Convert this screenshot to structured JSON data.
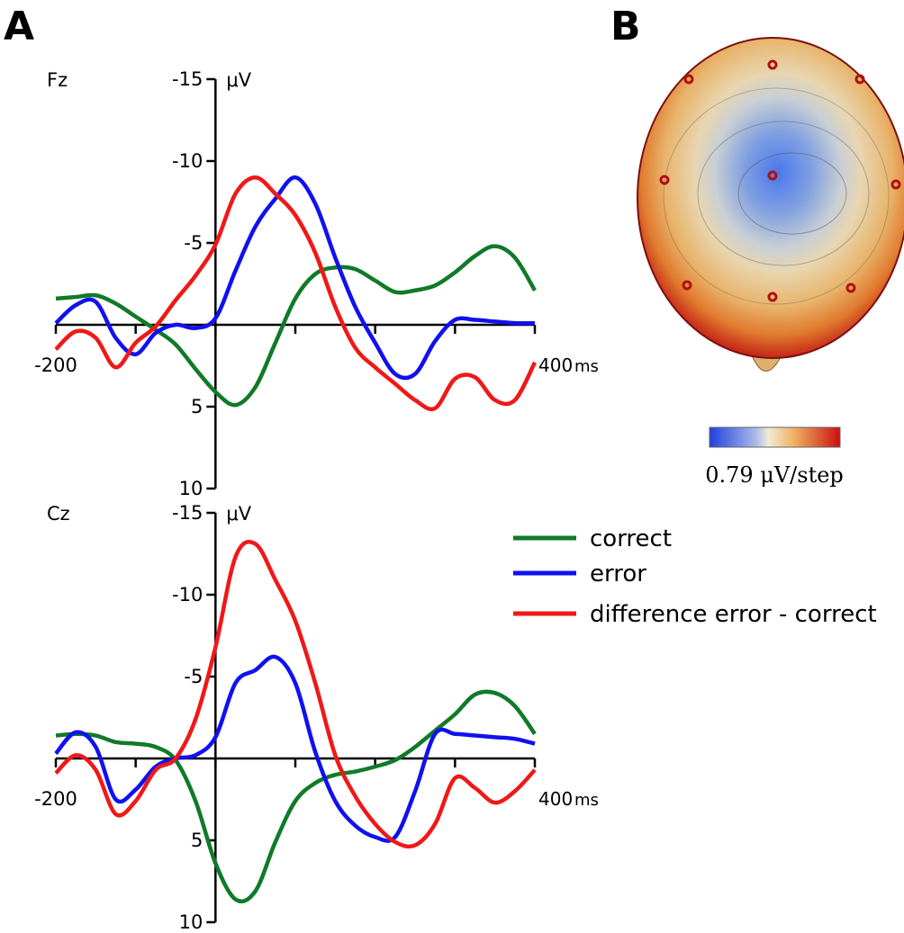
{
  "panels": [
    "A",
    "B"
  ],
  "topomap": {
    "scale_label": "0.79 μV/step"
  },
  "chart_data": [
    {
      "type": "line",
      "title": "Fz",
      "y_unit": "μV",
      "x_unit": "ms",
      "y_inverted": true,
      "x": [
        -200,
        -175,
        -150,
        -125,
        -100,
        -75,
        -50,
        -25,
        0,
        25,
        50,
        75,
        100,
        125,
        150,
        175,
        200,
        225,
        250,
        275,
        300,
        325,
        350,
        375,
        400
      ],
      "xlim": [
        -200,
        400
      ],
      "xticks": [
        -200,
        400
      ],
      "xminor_ticks": [
        -100,
        0,
        100,
        200,
        300
      ],
      "ylim": [
        -15,
        10
      ],
      "yticks": [
        -15,
        -10,
        -5,
        5,
        10
      ],
      "series": [
        {
          "name": "correct",
          "color": "#107a28",
          "values": [
            -1.6,
            -1.7,
            -1.8,
            -1.3,
            -0.5,
            0.3,
            1.2,
            2.7,
            4.1,
            4.9,
            3.8,
            1.1,
            -1.6,
            -3.1,
            -3.5,
            -3.4,
            -2.7,
            -2.0,
            -2.1,
            -2.4,
            -3.2,
            -4.2,
            -4.8,
            -4.1,
            -2.1
          ]
        },
        {
          "name": "error",
          "color": "#1010f0",
          "values": [
            -0.1,
            -1.2,
            -1.4,
            0.8,
            1.8,
            0.5,
            0,
            0.2,
            -0.4,
            -3.3,
            -6.0,
            -7.7,
            -9.0,
            -7.4,
            -4.1,
            -1.1,
            1.1,
            3.0,
            3.0,
            1.0,
            -0.3,
            -0.3,
            -0.2,
            -0.1,
            -0.1
          ]
        },
        {
          "name": "difference error - correct",
          "color": "#f01818",
          "values": [
            1.5,
            0.4,
            0.8,
            2.6,
            1.1,
            0.1,
            -1.5,
            -3.0,
            -4.9,
            -8.0,
            -9.0,
            -8.0,
            -6.7,
            -4.4,
            -1.1,
            1.4,
            2.6,
            3.6,
            4.6,
            5.1,
            3.3,
            3.2,
            4.6,
            4.6,
            2.3
          ]
        }
      ]
    },
    {
      "type": "line",
      "title": "Cz",
      "y_unit": "μV",
      "x_unit": "ms",
      "y_inverted": true,
      "x": [
        -200,
        -175,
        -150,
        -125,
        -100,
        -75,
        -50,
        -25,
        0,
        25,
        50,
        75,
        100,
        125,
        150,
        175,
        200,
        225,
        250,
        275,
        300,
        325,
        350,
        375,
        400
      ],
      "xlim": [
        -200,
        400
      ],
      "xticks": [
        -200,
        400
      ],
      "xminor_ticks": [
        -100,
        0,
        100,
        200,
        300
      ],
      "ylim": [
        -15,
        10
      ],
      "yticks": [
        -15,
        -10,
        -5,
        5,
        10
      ],
      "series": [
        {
          "name": "correct",
          "color": "#107a28",
          "values": [
            -1.4,
            -1.5,
            -1.4,
            -1.0,
            -0.9,
            -0.7,
            0.1,
            2.6,
            6.4,
            8.6,
            8.1,
            5.1,
            2.6,
            1.5,
            1.0,
            0.8,
            0.5,
            0.1,
            -0.7,
            -1.7,
            -2.7,
            -3.9,
            -4.0,
            -3.2,
            -1.5
          ]
        },
        {
          "name": "error",
          "color": "#1010f0",
          "values": [
            -0.3,
            -1.6,
            -0.7,
            2.5,
            1.9,
            0.5,
            0,
            -0.2,
            -1.3,
            -4.6,
            -5.4,
            -6.2,
            -4.6,
            -0.4,
            2.6,
            4.1,
            4.8,
            4.8,
            2.0,
            -1.5,
            -1.5,
            -1.4,
            -1.3,
            -1.2,
            -0.9
          ]
        },
        {
          "name": "difference error - correct",
          "color": "#f01818",
          "values": [
            0.9,
            -0.2,
            0.7,
            3.4,
            2.6,
            0.7,
            0,
            -2.4,
            -6.8,
            -12.3,
            -13.1,
            -10.9,
            -8.4,
            -4.6,
            -0.2,
            2.3,
            4.0,
            5.1,
            5.3,
            4.0,
            1.2,
            1.8,
            2.7,
            2.0,
            0.7
          ]
        }
      ]
    }
  ]
}
